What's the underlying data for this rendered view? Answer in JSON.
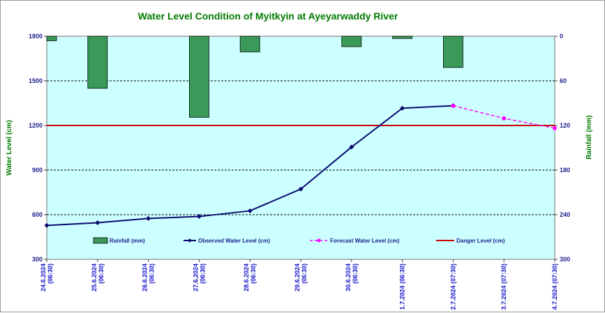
{
  "chart_data": {
    "type": "bar+line",
    "title": "Water Level Condition of Myitkyin at Ayeyarwaddy River",
    "ylabel": "Water Level (cm)",
    "y2label": "Rainfall (mm)",
    "ylim": [
      300,
      1800
    ],
    "yticks": [
      300,
      600,
      900,
      1200,
      1500,
      1800
    ],
    "y2lim": [
      0,
      300
    ],
    "y2ticks": [
      0,
      60,
      120,
      180,
      240,
      300
    ],
    "y2_reversed": true,
    "grid": "horizontal dashed",
    "legend_position": "bottom",
    "categories": [
      [
        "24.6.2024",
        "(06:30)"
      ],
      [
        "25.6.2024",
        "(06:30)"
      ],
      [
        "26.6.2024",
        "(06:30)"
      ],
      [
        "27.6.2024",
        "(06:30)"
      ],
      [
        "28.6.2024",
        "(06:30)"
      ],
      [
        "29.6.2024",
        "(06:30)"
      ],
      [
        "30.6.2024",
        "(06:30)"
      ],
      [
        "1.7.2024 (06:30)"
      ],
      [
        "2.7.2024 (07:30)"
      ],
      [
        "3.7.2024 (07:30)"
      ],
      [
        "4.7.2024 (07:30)"
      ]
    ],
    "series": [
      {
        "name": "Rainfall (mm)",
        "kind": "bar",
        "axis": "y2",
        "color": "#3a9a5a",
        "values": [
          6,
          70,
          0,
          109,
          21,
          0,
          14,
          3,
          42,
          null,
          null
        ]
      },
      {
        "name": "Observed Water Level (cm)",
        "kind": "line",
        "axis": "y",
        "color": "#0a0a70",
        "values": [
          528,
          546,
          575,
          588,
          626,
          772,
          1055,
          1316,
          1333,
          null,
          null
        ]
      },
      {
        "name": "Forecast Water Level (cm)",
        "kind": "line-dashed",
        "axis": "y",
        "color": "#ff00ff",
        "values": [
          null,
          null,
          null,
          null,
          null,
          null,
          null,
          null,
          1333,
          1248,
          1182
        ]
      },
      {
        "name": "Danger Level (cm)",
        "kind": "hline",
        "axis": "y",
        "color": "#cc0000",
        "value": 1200
      }
    ]
  }
}
